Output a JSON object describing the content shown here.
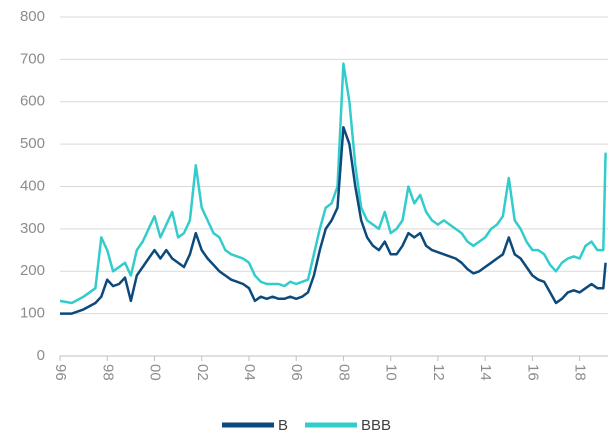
{
  "chart_data": {
    "type": "line",
    "x": [
      1996,
      1996.5,
      1997,
      1997.5,
      1997.75,
      1998,
      1998.25,
      1998.5,
      1998.75,
      1999,
      1999.25,
      1999.5,
      1999.75,
      2000,
      2000.25,
      2000.5,
      2000.75,
      2001,
      2001.25,
      2001.5,
      2001.75,
      2002,
      2002.25,
      2002.5,
      2002.75,
      2003,
      2003.25,
      2003.5,
      2003.75,
      2004,
      2004.25,
      2004.5,
      2004.75,
      2005,
      2005.25,
      2005.5,
      2005.75,
      2006,
      2006.25,
      2006.5,
      2006.75,
      2007,
      2007.25,
      2007.5,
      2007.75,
      2008,
      2008.25,
      2008.5,
      2008.75,
      2009,
      2009.25,
      2009.5,
      2009.75,
      2010,
      2010.25,
      2010.5,
      2010.75,
      2011,
      2011.25,
      2011.5,
      2011.75,
      2012,
      2012.25,
      2012.5,
      2012.75,
      2013,
      2013.25,
      2013.5,
      2013.75,
      2014,
      2014.25,
      2014.5,
      2014.75,
      2015,
      2015.25,
      2015.5,
      2015.75,
      2016,
      2016.25,
      2016.5,
      2016.75,
      2017,
      2017.25,
      2017.5,
      2017.75,
      2018,
      2018.25,
      2018.5,
      2018.75,
      2019,
      2019.1
    ],
    "series": [
      {
        "name": "B",
        "color": "#0d4a7c",
        "values": [
          100,
          100,
          110,
          125,
          140,
          180,
          165,
          170,
          185,
          130,
          190,
          210,
          230,
          250,
          230,
          250,
          230,
          220,
          210,
          240,
          290,
          250,
          230,
          215,
          200,
          190,
          180,
          175,
          170,
          160,
          130,
          140,
          135,
          140,
          135,
          135,
          140,
          135,
          140,
          150,
          190,
          250,
          300,
          320,
          350,
          540,
          500,
          400,
          320,
          280,
          260,
          250,
          270,
          240,
          240,
          260,
          290,
          280,
          290,
          260,
          250,
          245,
          240,
          235,
          230,
          220,
          205,
          195,
          200,
          210,
          220,
          230,
          240,
          280,
          240,
          230,
          210,
          190,
          180,
          175,
          150,
          125,
          135,
          150,
          155,
          150,
          160,
          170,
          160,
          160,
          220
        ]
      },
      {
        "name": "BBB",
        "color": "#33cccc",
        "values": [
          130,
          125,
          140,
          160,
          280,
          250,
          200,
          210,
          220,
          190,
          250,
          270,
          300,
          330,
          280,
          310,
          340,
          280,
          290,
          320,
          450,
          350,
          320,
          290,
          280,
          250,
          240,
          235,
          230,
          220,
          190,
          175,
          170,
          170,
          170,
          165,
          175,
          170,
          175,
          180,
          240,
          300,
          350,
          360,
          400,
          690,
          600,
          450,
          350,
          320,
          310,
          300,
          340,
          290,
          300,
          320,
          400,
          360,
          380,
          340,
          320,
          310,
          320,
          310,
          300,
          290,
          270,
          260,
          270,
          280,
          300,
          310,
          330,
          420,
          320,
          300,
          270,
          250,
          250,
          240,
          215,
          200,
          220,
          230,
          235,
          230,
          260,
          270,
          250,
          250,
          480
        ]
      }
    ],
    "xlim": [
      1996,
      2019.2
    ],
    "xticks": [
      {
        "value": 1996,
        "label": "96"
      },
      {
        "value": 1998,
        "label": "98"
      },
      {
        "value": 2000,
        "label": "00"
      },
      {
        "value": 2002,
        "label": "02"
      },
      {
        "value": 2004,
        "label": "04"
      },
      {
        "value": 2006,
        "label": "06"
      },
      {
        "value": 2008,
        "label": "08"
      },
      {
        "value": 2010,
        "label": "10"
      },
      {
        "value": 2012,
        "label": "12"
      },
      {
        "value": 2014,
        "label": "14"
      },
      {
        "value": 2016,
        "label": "16"
      },
      {
        "value": 2018,
        "label": "18"
      }
    ],
    "ylim": [
      0,
      800
    ],
    "yticks": [
      0,
      100,
      200,
      300,
      400,
      500,
      600,
      700,
      800
    ],
    "grid": true,
    "legend": "bottom"
  }
}
